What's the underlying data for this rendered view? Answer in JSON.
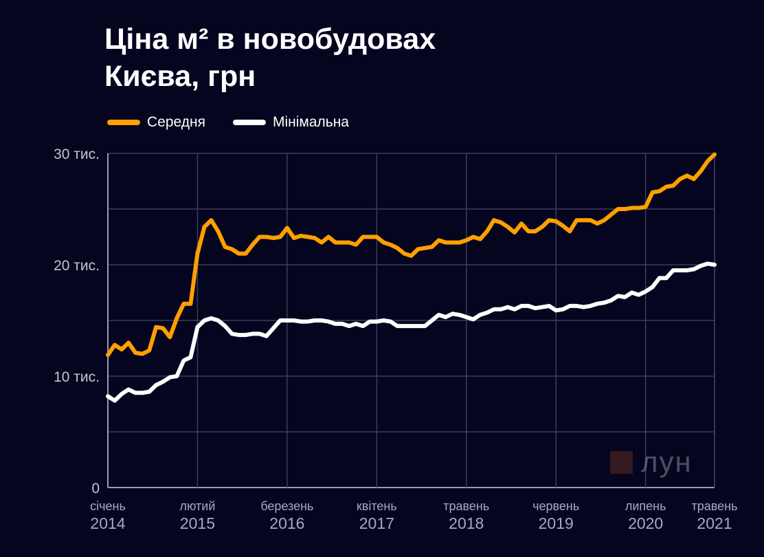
{
  "title": {
    "line1": "Ціна м² в новобудовах",
    "line2": "Києва, грн"
  },
  "legend": [
    {
      "label": "Середня",
      "color": "#ffa000"
    },
    {
      "label": "Мінімальна",
      "color": "#ffffff"
    }
  ],
  "watermark": "лун",
  "chart_data": {
    "type": "line",
    "title": "Ціна м² в новобудовах Києва, грн",
    "xlabel": "",
    "ylabel": "",
    "ylim": [
      0,
      30000
    ],
    "yticks": [
      {
        "value": 0,
        "label": "0"
      },
      {
        "value": 10000,
        "label": "10 тис."
      },
      {
        "value": 20000,
        "label": "20 тис."
      },
      {
        "value": 30000,
        "label": "30 тис."
      }
    ],
    "xticks": [
      {
        "month": 0,
        "line1": "січень",
        "line2": "2014"
      },
      {
        "month": 13,
        "line1": "лютий",
        "line2": "2015"
      },
      {
        "month": 26,
        "line1": "березень",
        "line2": "2016"
      },
      {
        "month": 39,
        "line1": "квітень",
        "line2": "2017"
      },
      {
        "month": 52,
        "line1": "травень",
        "line2": "2018"
      },
      {
        "month": 65,
        "line1": "червень",
        "line2": "2019"
      },
      {
        "month": 78,
        "line1": "липень",
        "line2": "2020"
      },
      {
        "month": 88,
        "line1": "травень",
        "line2": "2021"
      }
    ],
    "x_start": "січень 2014",
    "x_step": "1 month",
    "grid": true,
    "legend_position": "top-left",
    "series": [
      {
        "name": "Середня",
        "color": "#ffa000",
        "values": [
          11900,
          12800,
          12400,
          13000,
          12100,
          12000,
          12300,
          14400,
          14300,
          13500,
          15200,
          16500,
          16500,
          21000,
          23400,
          24000,
          23000,
          21600,
          21400,
          21000,
          21000,
          21800,
          22500,
          22500,
          22400,
          22500,
          23300,
          22400,
          22600,
          22500,
          22400,
          22000,
          22500,
          22000,
          22000,
          22000,
          21800,
          22500,
          22500,
          22500,
          22000,
          21800,
          21500,
          21000,
          20800,
          21400,
          21500,
          21600,
          22200,
          22000,
          22000,
          22000,
          22200,
          22500,
          22300,
          23000,
          24000,
          23800,
          23400,
          22900,
          23700,
          23000,
          23000,
          23400,
          24000,
          23900,
          23500,
          23000,
          24000,
          24000,
          24000,
          23700,
          24000,
          24500,
          25000,
          25000,
          25100,
          25100,
          25200,
          26500,
          26600,
          27000,
          27100,
          27700,
          28000,
          27700,
          28400,
          29300,
          29900
        ]
      },
      {
        "name": "Мінімальна",
        "color": "#ffffff",
        "values": [
          8200,
          7800,
          8400,
          8800,
          8500,
          8500,
          8600,
          9200,
          9500,
          9900,
          10000,
          11400,
          11700,
          14400,
          15000,
          15200,
          15000,
          14500,
          13800,
          13700,
          13700,
          13800,
          13800,
          13600,
          14300,
          15000,
          15000,
          15000,
          14900,
          14900,
          15000,
          15000,
          14900,
          14700,
          14700,
          14500,
          14700,
          14500,
          14900,
          14900,
          15000,
          14900,
          14500,
          14500,
          14500,
          14500,
          14500,
          15000,
          15500,
          15300,
          15600,
          15500,
          15300,
          15100,
          15500,
          15700,
          16000,
          16000,
          16200,
          16000,
          16300,
          16300,
          16100,
          16200,
          16300,
          15900,
          16000,
          16300,
          16300,
          16200,
          16300,
          16500,
          16600,
          16800,
          17200,
          17100,
          17500,
          17300,
          17600,
          18000,
          18800,
          18800,
          19500,
          19500,
          19500,
          19600,
          19900,
          20100,
          20000
        ]
      }
    ]
  }
}
